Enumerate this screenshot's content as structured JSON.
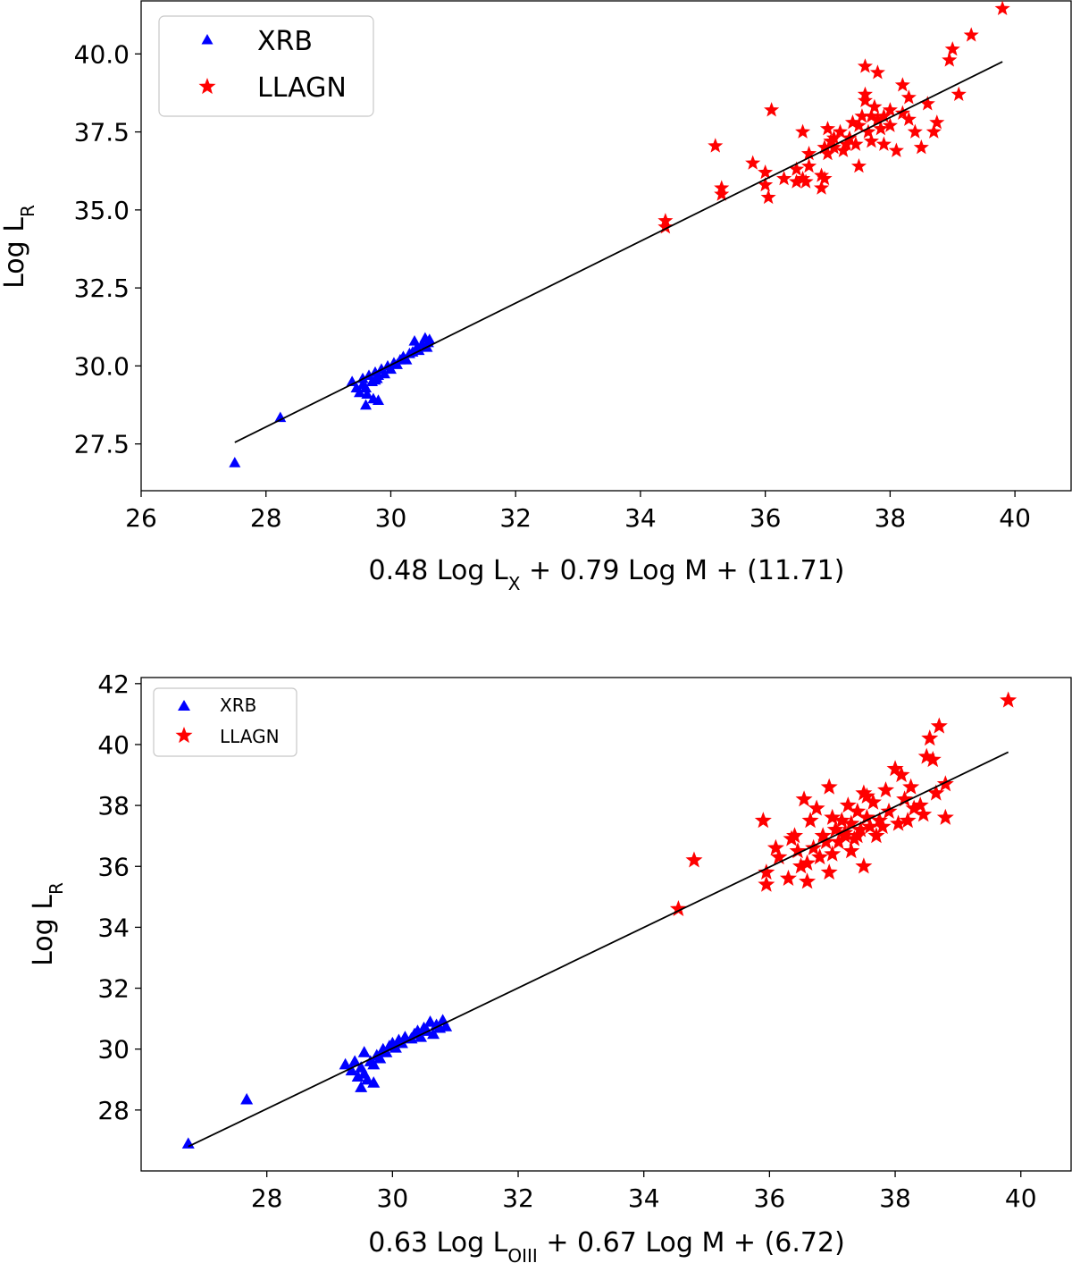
{
  "chart_data": [
    {
      "type": "scatter",
      "xlabel_parts": {
        "pre": "0.48 Log L",
        "sub": "X",
        "post": " + 0.79 Log M + (11.71)"
      },
      "ylabel_parts": {
        "pre": "Log L",
        "sub": "R"
      },
      "xlim": [
        26,
        40.9
      ],
      "ylim": [
        26.0,
        41.7
      ],
      "xticks": [
        26,
        28,
        30,
        32,
        34,
        36,
        38,
        40
      ],
      "xtick_labels": [
        "26",
        "28",
        "30",
        "32",
        "34",
        "36",
        "38",
        "40"
      ],
      "yticks": [
        27.5,
        30.0,
        32.5,
        35.0,
        37.5,
        40.0
      ],
      "ytick_labels": [
        "27.5",
        "30.0",
        "32.5",
        "35.0",
        "37.5",
        "40.0"
      ],
      "legend": {
        "location": "top-left",
        "entries": [
          "XRB",
          "LLAGN"
        ]
      },
      "fit_line": {
        "x": [
          27.5,
          39.8
        ],
        "y": [
          27.55,
          39.75
        ]
      },
      "series": [
        {
          "name": "XRB",
          "marker": "triangle",
          "color": "#0000ff",
          "x": [
            27.5,
            28.23,
            29.38,
            29.45,
            29.5,
            29.55,
            29.55,
            29.6,
            29.62,
            29.65,
            29.7,
            29.72,
            29.75,
            29.78,
            29.8,
            29.85,
            29.9,
            29.95,
            30.0,
            30.05,
            30.1,
            30.15,
            30.2,
            30.25,
            30.3,
            30.35,
            30.38,
            30.42,
            30.45,
            30.5,
            30.55,
            30.58,
            30.62,
            29.6,
            29.75,
            29.8,
            30.6
          ],
          "y": [
            26.9,
            28.35,
            29.5,
            29.3,
            29.15,
            29.6,
            29.4,
            28.75,
            29.1,
            29.7,
            29.5,
            28.95,
            29.8,
            29.6,
            28.9,
            29.9,
            29.75,
            30.0,
            29.9,
            30.1,
            30.05,
            30.2,
            30.3,
            30.2,
            30.4,
            30.45,
            30.8,
            30.6,
            30.5,
            30.7,
            30.9,
            30.6,
            30.85,
            29.3,
            29.55,
            29.7,
            30.75
          ]
        },
        {
          "name": "LLAGN",
          "marker": "star",
          "color": "#ff0000",
          "x": [
            34.4,
            34.4,
            35.2,
            35.3,
            35.3,
            35.8,
            36.0,
            36.0,
            36.05,
            36.1,
            36.3,
            36.5,
            36.6,
            36.6,
            36.65,
            36.7,
            36.7,
            36.9,
            36.9,
            36.95,
            37.0,
            37.0,
            37.1,
            37.1,
            37.2,
            37.25,
            37.3,
            37.35,
            37.4,
            37.45,
            37.5,
            37.5,
            37.55,
            37.6,
            37.6,
            37.65,
            37.7,
            37.7,
            37.75,
            37.8,
            37.8,
            37.85,
            37.9,
            37.9,
            38.0,
            38.0,
            38.1,
            38.2,
            38.2,
            38.3,
            38.3,
            38.4,
            38.5,
            38.6,
            38.7,
            38.75,
            38.95,
            39.0,
            39.1,
            39.3,
            39.8,
            36.5,
            36.95,
            37.05,
            37.6
          ],
          "y": [
            34.65,
            34.45,
            37.05,
            35.7,
            35.5,
            36.5,
            36.2,
            35.8,
            35.4,
            38.2,
            36.0,
            36.3,
            37.5,
            36.0,
            35.9,
            36.8,
            36.4,
            36.1,
            35.7,
            37.0,
            37.6,
            36.8,
            37.3,
            37.0,
            37.5,
            36.9,
            37.1,
            37.3,
            37.8,
            37.1,
            36.4,
            37.7,
            38.0,
            39.6,
            38.5,
            37.5,
            38.0,
            37.2,
            38.3,
            37.9,
            39.4,
            37.6,
            38.0,
            37.1,
            37.7,
            38.2,
            36.9,
            38.1,
            39.0,
            37.9,
            38.6,
            37.5,
            37.0,
            38.4,
            37.5,
            37.8,
            39.8,
            40.15,
            38.7,
            40.6,
            41.45,
            35.9,
            36.0,
            37.2,
            38.7
          ]
        }
      ]
    },
    {
      "type": "scatter",
      "xlabel_parts": {
        "pre": "0.63 Log L",
        "sub": "OIII",
        "post": " + 0.67 Log M + (6.72)"
      },
      "ylabel_parts": {
        "pre": "Log L",
        "sub": "R"
      },
      "xlim": [
        26.0,
        40.8
      ],
      "ylim": [
        26.0,
        42.2
      ],
      "xticks": [
        28,
        30,
        32,
        34,
        36,
        38,
        40
      ],
      "xtick_labels": [
        "28",
        "30",
        "32",
        "34",
        "36",
        "38",
        "40"
      ],
      "yticks": [
        28,
        30,
        32,
        34,
        36,
        38,
        40,
        42
      ],
      "ytick_labels": [
        "28",
        "30",
        "32",
        "34",
        "36",
        "38",
        "40",
        "42"
      ],
      "legend": {
        "location": "top-left",
        "entries": [
          "XRB",
          "LLAGN"
        ]
      },
      "fit_line": {
        "x": [
          26.75,
          39.8
        ],
        "y": [
          26.8,
          39.75
        ]
      },
      "series": [
        {
          "name": "XRB",
          "marker": "triangle",
          "color": "#0000ff",
          "x": [
            26.75,
            27.68,
            29.25,
            29.35,
            29.4,
            29.45,
            29.5,
            29.5,
            29.55,
            29.6,
            29.65,
            29.7,
            29.75,
            29.8,
            29.85,
            29.9,
            29.95,
            30.0,
            30.05,
            30.1,
            30.15,
            30.2,
            30.3,
            30.35,
            30.4,
            30.45,
            30.5,
            30.55,
            30.6,
            30.65,
            30.7,
            30.75,
            30.8,
            30.85,
            29.55,
            29.7
          ],
          "y": [
            26.9,
            28.35,
            29.5,
            29.3,
            29.6,
            29.1,
            28.75,
            29.4,
            29.9,
            29.0,
            29.6,
            28.9,
            29.8,
            29.7,
            30.0,
            29.9,
            30.1,
            30.2,
            30.05,
            30.3,
            30.2,
            30.4,
            30.35,
            30.5,
            30.6,
            30.4,
            30.7,
            30.6,
            30.9,
            30.5,
            30.8,
            30.7,
            30.95,
            30.75,
            29.2,
            29.5
          ]
        },
        {
          "name": "LLAGN",
          "marker": "star",
          "color": "#ff0000",
          "x": [
            34.55,
            34.8,
            35.9,
            35.95,
            35.95,
            36.1,
            36.15,
            36.3,
            36.35,
            36.4,
            36.45,
            36.5,
            36.55,
            36.6,
            36.65,
            36.7,
            36.75,
            36.8,
            36.85,
            36.9,
            36.95,
            37.0,
            37.0,
            37.05,
            37.1,
            37.15,
            37.2,
            37.25,
            37.3,
            37.3,
            37.35,
            37.4,
            37.45,
            37.5,
            37.5,
            37.55,
            37.6,
            37.65,
            37.7,
            37.75,
            37.8,
            37.85,
            37.9,
            38.0,
            38.05,
            38.1,
            38.15,
            38.2,
            38.25,
            38.3,
            38.4,
            38.45,
            38.5,
            38.55,
            38.6,
            38.65,
            38.7,
            38.8,
            38.8,
            39.8,
            36.6,
            36.95,
            37.2,
            37.4,
            37.55
          ],
          "y": [
            34.6,
            36.2,
            37.5,
            35.8,
            35.4,
            36.6,
            36.3,
            35.6,
            36.9,
            37.0,
            36.5,
            36.0,
            38.2,
            35.5,
            37.5,
            36.6,
            37.9,
            36.3,
            37.0,
            36.8,
            38.6,
            37.6,
            36.4,
            37.2,
            36.8,
            37.5,
            37.0,
            38.0,
            36.5,
            37.4,
            36.9,
            37.8,
            37.2,
            38.4,
            36.0,
            37.6,
            37.3,
            38.1,
            37.0,
            37.5,
            37.3,
            38.5,
            37.8,
            39.2,
            37.4,
            39.0,
            38.2,
            37.5,
            38.6,
            37.9,
            38.0,
            37.7,
            39.6,
            40.2,
            39.5,
            38.4,
            40.6,
            37.6,
            38.7,
            41.45,
            36.1,
            35.8,
            37.1,
            37.0,
            38.3
          ]
        }
      ]
    }
  ]
}
